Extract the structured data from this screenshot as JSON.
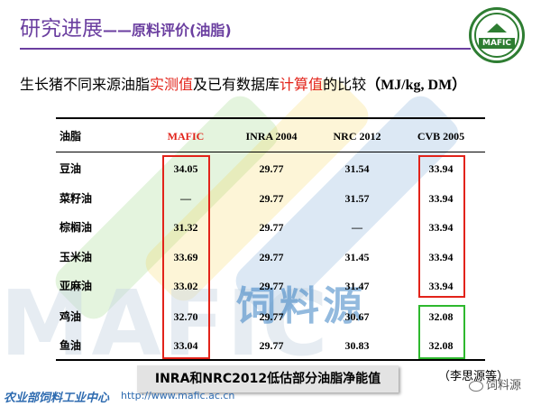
{
  "slide": {
    "title": "研究进展",
    "title_dash": "——",
    "title_sub": "原料评价(油脂)",
    "logo_text": "MAFIC",
    "heading": {
      "part1": "生长猪不同来源油脂",
      "red1": "实测值",
      "part2": "及已有数据库",
      "red2": "计算值",
      "part3": "的比较",
      "unit": "（MJ/kg, DM）"
    },
    "table": {
      "headers": [
        "油脂",
        "MAFIC",
        "INRA 2004",
        "NRC 2012",
        "CVB 2005"
      ],
      "rows": [
        [
          "豆油",
          "34.05",
          "29.77",
          "31.54",
          "33.94"
        ],
        [
          "菜籽油",
          "—",
          "29.77",
          "31.57",
          "33.94"
        ],
        [
          "棕榈油",
          "31.32",
          "29.77",
          "—",
          "33.94"
        ],
        [
          "玉米油",
          "33.69",
          "29.77",
          "31.45",
          "33.94"
        ],
        [
          "亚麻油",
          "33.02",
          "29.77",
          "31.47",
          "33.94"
        ],
        [
          "鸡油",
          "32.70",
          "29.77",
          "30.67",
          "32.08"
        ],
        [
          "鱼油",
          "33.04",
          "29.77",
          "30.83",
          "32.08"
        ]
      ]
    },
    "caption": "INRA和NRC2012低估部分油脂净能值",
    "source": "（李思源等）",
    "footer_org": "农业部饲料工业中心",
    "footer_url": "http://www.mafic.ac.cn",
    "wechat": "饲料源",
    "watermark_brand": "饲料源",
    "watermark_letters": "MAFIC",
    "colors": {
      "title": "#6b3fa0",
      "red": "#e2231a",
      "green": "#2eb82e",
      "logo": "#2e7d32",
      "footer": "#2e6bb0"
    }
  }
}
